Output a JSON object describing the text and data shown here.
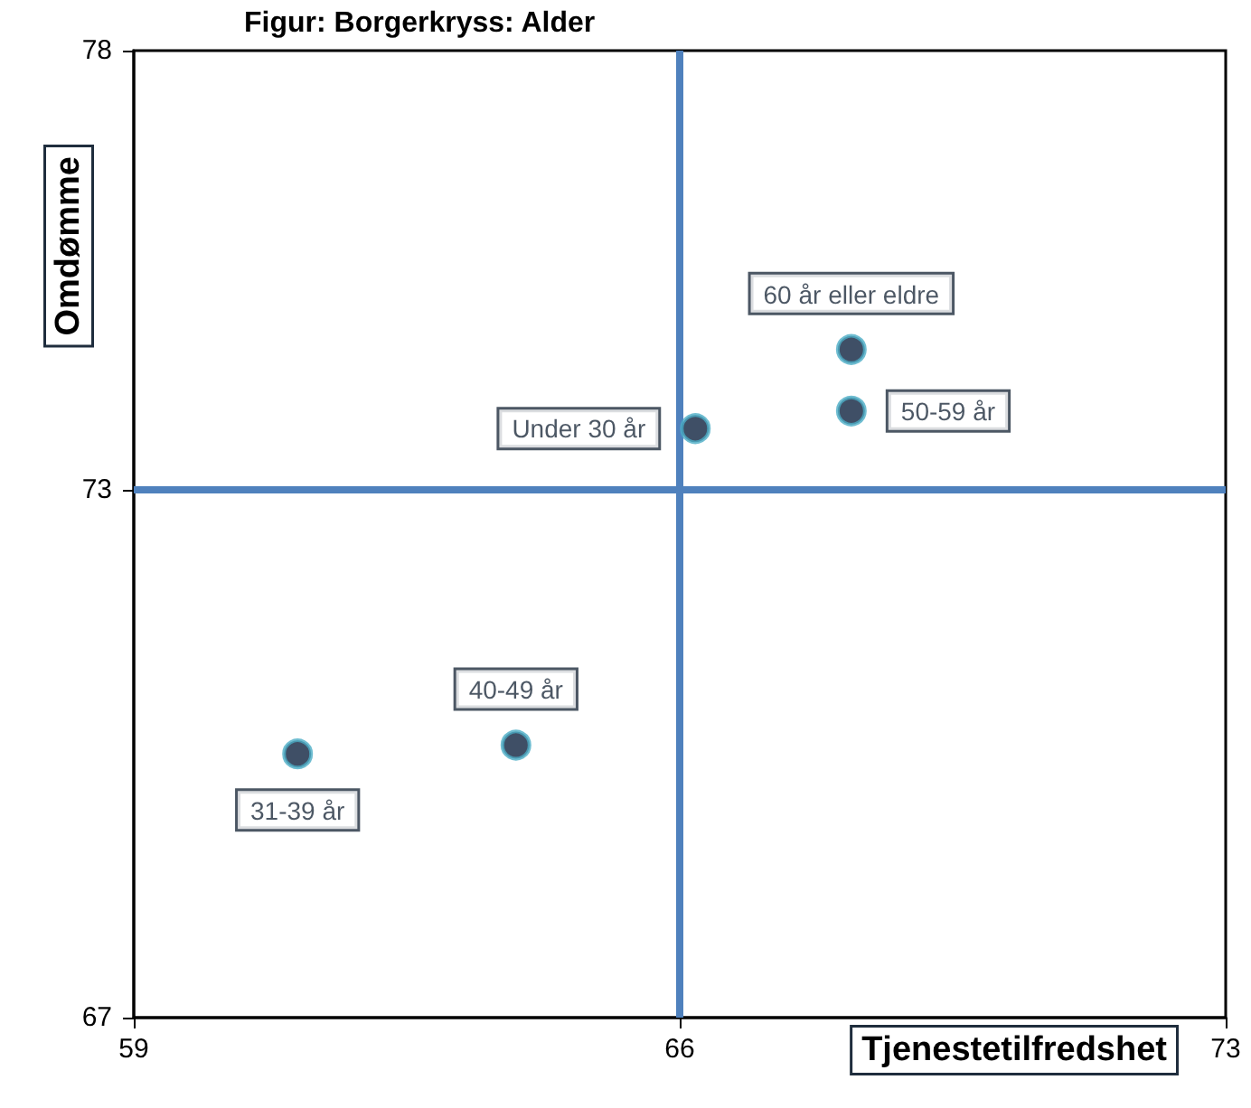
{
  "chart_data": {
    "type": "scatter",
    "title": "Figur: Borgerkryss: Alder",
    "xlabel": "Tjenestetilfredshet",
    "ylabel": "Omdømme",
    "xlim": [
      59,
      73
    ],
    "xticks": [
      59,
      66,
      73
    ],
    "ylim": [
      67,
      78
    ],
    "yticks": [
      67,
      73,
      78
    ],
    "grid": false,
    "legend": false,
    "marker": "circle",
    "series": [
      {
        "name": "60 år eller eldre",
        "color": "#0f2340",
        "x": [
          68.2
        ],
        "values": [
          74.6
        ]
      },
      {
        "name": "50-59 år",
        "color": "#0f2340",
        "x": [
          68.2
        ],
        "values": [
          73.9
        ]
      },
      {
        "name": "Under 30 år",
        "color": "#0f2340",
        "x": [
          66.2
        ],
        "values": [
          73.7
        ]
      },
      {
        "name": "40-49 år",
        "color": "#0f2340",
        "x": [
          63.9
        ],
        "values": [
          70.1
        ]
      },
      {
        "name": "31-39 år",
        "color": "#0f2340",
        "x": [
          61.1
        ],
        "values": [
          70.0
        ]
      }
    ],
    "ref_lines": [
      {
        "axis": "x",
        "value": 66,
        "color": "#4f81bd"
      },
      {
        "axis": "y",
        "value": 73,
        "color": "#4f81bd"
      }
    ]
  }
}
